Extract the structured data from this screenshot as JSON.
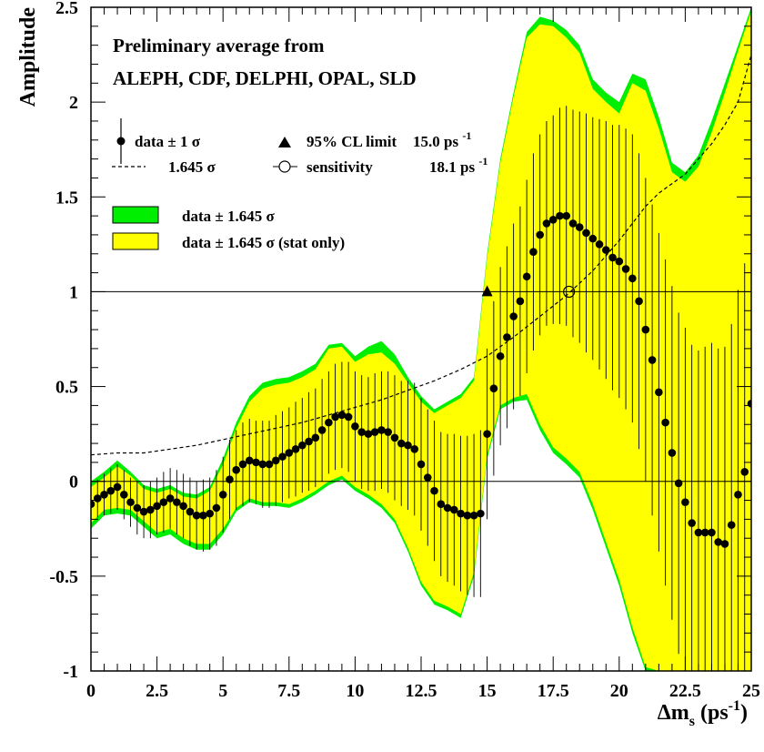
{
  "chart_data": {
    "type": "line",
    "title_lines": [
      "Preliminary average from",
      "ALEPH, CDF, DELPHI, OPAL, SLD"
    ],
    "xlabel": "Δm",
    "xlabel_sub": "s",
    "xlabel_unit": " (ps",
    "xlabel_unit_sup": "-1",
    "xlabel_close": ")",
    "ylabel": "Amplitude",
    "xlim": [
      0,
      25
    ],
    "ylim": [
      -1,
      2.5
    ],
    "xticks": [
      {
        "v": 0,
        "label": "0"
      },
      {
        "v": 2.5,
        "label": "2.5"
      },
      {
        "v": 5,
        "label": "5"
      },
      {
        "v": 7.5,
        "label": "7.5"
      },
      {
        "v": 10,
        "label": "10"
      },
      {
        "v": 12.5,
        "label": "12.5"
      },
      {
        "v": 15,
        "label": "15"
      },
      {
        "v": 17.5,
        "label": "17.5"
      },
      {
        "v": 20,
        "label": "20"
      },
      {
        "v": 22.5,
        "label": "22.5"
      },
      {
        "v": 25,
        "label": "25"
      }
    ],
    "yticks": [
      {
        "v": -1,
        "label": "-1"
      },
      {
        "v": -0.5,
        "label": "-0.5"
      },
      {
        "v": 0,
        "label": "0"
      },
      {
        "v": 0.5,
        "label": "0.5"
      },
      {
        "v": 1,
        "label": "1"
      },
      {
        "v": 1.5,
        "label": "1.5"
      },
      {
        "v": 2,
        "label": "2"
      },
      {
        "v": 2.5,
        "label": "2.5"
      }
    ],
    "hlines": [
      0,
      1
    ],
    "legend": {
      "data_label": "data ± 1 σ",
      "limit_label": "95% CL limit",
      "limit_value": "15.0 ps",
      "limit_sup": "-1",
      "sens_curve_label": "1.645 σ",
      "sens_label": "sensitivity",
      "sens_value": "18.1 ps",
      "sens_sup": "-1",
      "band_total_label": "data ± 1.645 σ",
      "band_stat_label": "data ± 1.645 σ (stat only)"
    },
    "colors": {
      "band_total": "#00ee00",
      "band_stat": "#ffff00",
      "points": "#000000"
    },
    "marker_limit": {
      "x": 15.0,
      "y": 1.0
    },
    "marker_sensitivity": {
      "x": 18.1,
      "y": 1.0
    },
    "series": [
      {
        "role": "data",
        "x": [
          0,
          0.25,
          0.5,
          0.75,
          1,
          1.25,
          1.5,
          1.75,
          2,
          2.25,
          2.5,
          2.75,
          3,
          3.25,
          3.5,
          3.75,
          4,
          4.25,
          4.5,
          4.75,
          5,
          5.25,
          5.5,
          5.75,
          6,
          6.25,
          6.5,
          6.75,
          7,
          7.25,
          7.5,
          7.75,
          8,
          8.25,
          8.5,
          8.75,
          9,
          9.25,
          9.5,
          9.75,
          10,
          10.25,
          10.5,
          10.75,
          11,
          11.25,
          11.5,
          11.75,
          12,
          12.25,
          12.5,
          12.75,
          13,
          13.25,
          13.5,
          13.75,
          14,
          14.25,
          14.5,
          14.75,
          15,
          15.25,
          15.5,
          15.75,
          16,
          16.25,
          16.5,
          16.75,
          17,
          17.25,
          17.5,
          17.75,
          18,
          18.25,
          18.5,
          18.75,
          19,
          19.25,
          19.5,
          19.75,
          20,
          20.25,
          20.5,
          20.75,
          21,
          21.25,
          21.5,
          21.75,
          22,
          22.25,
          22.5,
          22.75,
          23,
          23.25,
          23.5,
          23.75,
          24,
          24.25,
          24.5,
          24.75,
          25
        ],
        "y": [
          -0.12,
          -0.09,
          -0.07,
          -0.05,
          -0.03,
          -0.07,
          -0.11,
          -0.14,
          -0.16,
          -0.15,
          -0.13,
          -0.11,
          -0.09,
          -0.11,
          -0.13,
          -0.16,
          -0.18,
          -0.18,
          -0.17,
          -0.14,
          -0.07,
          0.01,
          0.06,
          0.09,
          0.11,
          0.1,
          0.09,
          0.09,
          0.11,
          0.13,
          0.15,
          0.17,
          0.19,
          0.21,
          0.23,
          0.27,
          0.31,
          0.34,
          0.35,
          0.34,
          0.29,
          0.26,
          0.25,
          0.26,
          0.27,
          0.26,
          0.23,
          0.2,
          0.19,
          0.17,
          0.09,
          0.02,
          -0.05,
          -0.12,
          -0.14,
          -0.15,
          -0.17,
          -0.18,
          -0.18,
          -0.17,
          0.25,
          0.49,
          0.66,
          0.76,
          0.87,
          0.95,
          1.08,
          1.21,
          1.3,
          1.36,
          1.38,
          1.4,
          1.4,
          1.36,
          1.34,
          1.31,
          1.28,
          1.25,
          1.22,
          1.18,
          1.16,
          1.12,
          1.07,
          0.95,
          0.8,
          0.64,
          0.47,
          0.31,
          0.15,
          -0.01,
          -0.11,
          -0.22,
          -0.27,
          -0.27,
          -0.27,
          -0.32,
          -0.33,
          -0.23,
          -0.07,
          0.05,
          0.41
        ],
        "err": [
          0.1,
          0.1,
          0.11,
          0.12,
          0.12,
          0.13,
          0.13,
          0.14,
          0.14,
          0.15,
          0.15,
          0.16,
          0.16,
          0.17,
          0.17,
          0.18,
          0.18,
          0.19,
          0.19,
          0.2,
          0.2,
          0.21,
          0.21,
          0.22,
          0.22,
          0.22,
          0.23,
          0.23,
          0.24,
          0.24,
          0.24,
          0.25,
          0.25,
          0.26,
          0.26,
          0.27,
          0.27,
          0.28,
          0.28,
          0.29,
          0.29,
          0.3,
          0.3,
          0.31,
          0.31,
          0.32,
          0.33,
          0.33,
          0.34,
          0.35,
          0.35,
          0.36,
          0.37,
          0.38,
          0.39,
          0.4,
          0.41,
          0.42,
          0.43,
          0.44,
          0.45,
          0.46,
          0.47,
          0.48,
          0.49,
          0.5,
          0.51,
          0.52,
          0.53,
          0.54,
          0.55,
          0.57,
          0.58,
          0.6,
          0.61,
          0.63,
          0.64,
          0.66,
          0.68,
          0.7,
          0.72,
          0.74,
          0.76,
          0.78,
          0.8,
          0.82,
          0.84,
          0.86,
          0.88,
          0.9,
          0.92,
          0.94,
          0.96,
          0.98,
          1.0,
          1.02,
          1.04,
          1.06,
          1.08,
          1.1,
          1.12
        ]
      },
      {
        "role": "band_total",
        "x": [
          0,
          0.5,
          1,
          1.5,
          2,
          2.5,
          3,
          3.5,
          4,
          4.5,
          5,
          5.5,
          6,
          6.5,
          7,
          7.5,
          8,
          8.5,
          9,
          9.5,
          10,
          10.5,
          11,
          11.5,
          12,
          12.5,
          13,
          13.5,
          14,
          14.5,
          15,
          15.5,
          16,
          16.5,
          17,
          17.5,
          18,
          18.5,
          19,
          19.5,
          20,
          20.5,
          21,
          21.5,
          22,
          22.5,
          23,
          23.5,
          24,
          24.5,
          25
        ],
        "upper": [
          0,
          0.05,
          0.11,
          0.05,
          -0.02,
          -0.04,
          -0.02,
          -0.06,
          -0.07,
          -0.03,
          0.12,
          0.31,
          0.45,
          0.52,
          0.54,
          0.55,
          0.58,
          0.62,
          0.72,
          0.73,
          0.66,
          0.71,
          0.74,
          0.67,
          0.55,
          0.45,
          0.38,
          0.42,
          0.46,
          0.55,
          1.2,
          1.7,
          2.05,
          2.37,
          2.45,
          2.43,
          2.38,
          2.3,
          2.12,
          2.05,
          2.0,
          2.15,
          2.12,
          1.92,
          1.68,
          1.63,
          1.72,
          1.9,
          2.1,
          2.3,
          2.5
        ],
        "lower": [
          -0.25,
          -0.18,
          -0.17,
          -0.18,
          -0.24,
          -0.3,
          -0.28,
          -0.33,
          -0.36,
          -0.36,
          -0.28,
          -0.16,
          -0.11,
          -0.13,
          -0.13,
          -0.14,
          -0.11,
          -0.07,
          -0.02,
          0.01,
          -0.05,
          -0.09,
          -0.14,
          -0.22,
          -0.37,
          -0.55,
          -0.65,
          -0.68,
          -0.72,
          -0.5,
          0.12,
          0.38,
          0.42,
          0.43,
          0.27,
          0.15,
          0.09,
          0.02,
          -0.15,
          -0.35,
          -0.55,
          -0.8,
          -1.0,
          -1.0,
          -1.0,
          -1.0,
          -1.0,
          -1.0,
          -1.0,
          -1.0,
          -1.0
        ]
      },
      {
        "role": "band_stat",
        "x": [
          0,
          0.5,
          1,
          1.5,
          2,
          2.5,
          3,
          3.5,
          4,
          4.5,
          5,
          5.5,
          6,
          6.5,
          7,
          7.5,
          8,
          8.5,
          9,
          9.5,
          10,
          10.5,
          11,
          11.5,
          12,
          12.5,
          13,
          13.5,
          14,
          14.5,
          15,
          15.5,
          16,
          16.5,
          17,
          17.5,
          18,
          18.5,
          19,
          19.5,
          20,
          20.5,
          21,
          21.5,
          22,
          22.5,
          23,
          23.5,
          24,
          24.5,
          25
        ],
        "upper": [
          -0.03,
          0.02,
          0.08,
          0.03,
          -0.04,
          -0.06,
          -0.04,
          -0.08,
          -0.09,
          -0.05,
          0.09,
          0.28,
          0.42,
          0.49,
          0.51,
          0.52,
          0.55,
          0.59,
          0.7,
          0.71,
          0.63,
          0.67,
          0.68,
          0.62,
          0.52,
          0.42,
          0.36,
          0.4,
          0.44,
          0.53,
          1.18,
          1.68,
          2.03,
          2.34,
          2.41,
          2.4,
          2.34,
          2.26,
          2.07,
          2.0,
          1.94,
          2.1,
          2.06,
          1.86,
          1.63,
          1.58,
          1.66,
          1.84,
          2.05,
          2.27,
          2.48
        ],
        "lower": [
          -0.22,
          -0.15,
          -0.14,
          -0.15,
          -0.21,
          -0.27,
          -0.25,
          -0.3,
          -0.33,
          -0.33,
          -0.25,
          -0.14,
          -0.09,
          -0.11,
          -0.11,
          -0.12,
          -0.09,
          -0.05,
          0.0,
          0.03,
          -0.03,
          -0.07,
          -0.12,
          -0.2,
          -0.35,
          -0.53,
          -0.63,
          -0.66,
          -0.7,
          -0.48,
          0.14,
          0.4,
          0.44,
          0.46,
          0.3,
          0.18,
          0.12,
          0.05,
          -0.12,
          -0.32,
          -0.52,
          -0.77,
          -0.98,
          -1.0,
          -1.0,
          -1.0,
          -1.0,
          -1.0,
          -1.0,
          -1.0,
          -1.0
        ]
      },
      {
        "role": "sensitivity_1.645sigma",
        "x": [
          0,
          1,
          2,
          3,
          4,
          5,
          6,
          7,
          8,
          9,
          10,
          11,
          12,
          13,
          14,
          15,
          16,
          17,
          18,
          19,
          20,
          20.5,
          21,
          21.5,
          22,
          22.5,
          23,
          23.5,
          24,
          24.5,
          25
        ],
        "y": [
          0.14,
          0.15,
          0.15,
          0.17,
          0.19,
          0.22,
          0.25,
          0.28,
          0.31,
          0.35,
          0.39,
          0.43,
          0.48,
          0.53,
          0.59,
          0.66,
          0.76,
          0.87,
          0.98,
          1.11,
          1.27,
          1.36,
          1.45,
          1.52,
          1.57,
          1.62,
          1.7,
          1.78,
          1.88,
          2.0,
          2.25
        ]
      }
    ]
  }
}
